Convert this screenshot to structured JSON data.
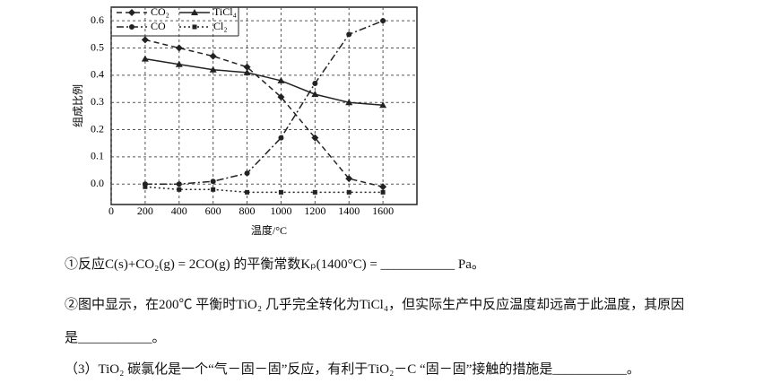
{
  "chart_data": {
    "type": "line",
    "x_label": "温度/°C",
    "y_label": "组成比例",
    "x": [
      200,
      400,
      600,
      800,
      1000,
      1200,
      1400,
      1600
    ],
    "xlim": [
      0,
      1800
    ],
    "xticks": [
      0,
      200,
      400,
      600,
      800,
      1000,
      1200,
      1400,
      1600
    ],
    "ylim": [
      -0.075,
      0.65
    ],
    "yticks": [
      {
        "value": 0,
        "label": "0.0"
      },
      0.1,
      0.2,
      0.3,
      0.4,
      0.5,
      0.6
    ],
    "grid": true,
    "legend": "top-left",
    "series": [
      {
        "name": "CO₂",
        "color": "#222",
        "dash": "6,4",
        "marker": "diamond",
        "values": [
          0.53,
          0.5,
          0.47,
          0.43,
          0.32,
          0.17,
          0.02,
          -0.01
        ]
      },
      {
        "name": "TiCl₄",
        "color": "#222",
        "dash": "none",
        "marker": "triangle",
        "values": [
          0.46,
          0.44,
          0.42,
          0.41,
          0.38,
          0.33,
          0.3,
          0.29
        ]
      },
      {
        "name": "CO",
        "color": "#222",
        "dash": "8,3,2,3",
        "marker": "circle",
        "values": [
          0,
          0,
          0.01,
          0.04,
          0.17,
          0.37,
          0.55,
          0.6
        ]
      },
      {
        "name": "Cl₂",
        "color": "#222",
        "dash": "2,3",
        "marker": "square",
        "values": [
          -0.01,
          -0.02,
          -0.02,
          -0.03,
          -0.03,
          -0.03,
          -0.03,
          -0.03
        ]
      }
    ]
  },
  "questions": [
    "①反应C(s)+CO₂(g) = 2CO(g) 的平衡常数Kₚ(1400°C) = ___________ Pa。",
    "②图中显示，在200℃ 平衡时TiO₂ 几乎完全转化为TiCl₄，但实际生产中反应温度却远高于此温度，其原因",
    "是___________。",
    "（3）TiO₂ 碳氯化是一个“气－固－固”反应，有利于TiO₂－C “固－固”接触的措施是___________。"
  ]
}
